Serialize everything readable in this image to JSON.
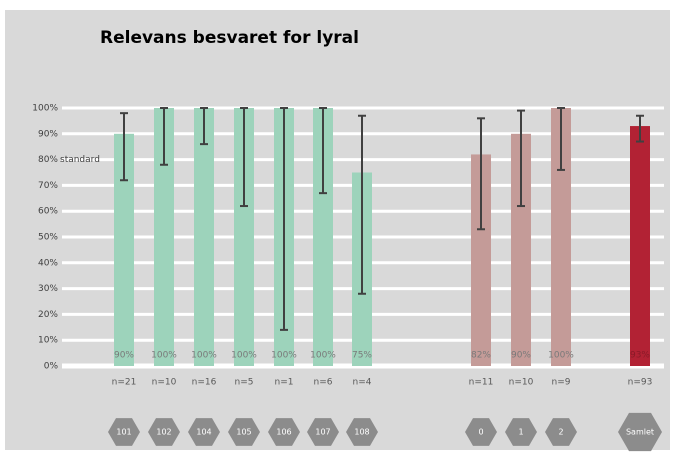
{
  "chart_data": {
    "type": "bar",
    "title": "Relevans besvaret for lyral",
    "annotation": "standard",
    "categories": [
      "101",
      "102",
      "104",
      "105",
      "106",
      "107",
      "108",
      "0",
      "1",
      "2",
      "Samlet"
    ],
    "values": [
      90,
      100,
      100,
      100,
      100,
      100,
      75,
      82,
      90,
      100,
      93
    ],
    "value_labels": [
      "90%",
      "100%",
      "100%",
      "100%",
      "100%",
      "100%",
      "75%",
      "82%",
      "90%",
      "100%",
      "93%"
    ],
    "error_low": [
      72,
      78,
      86,
      62,
      14,
      67,
      28,
      53,
      62,
      76,
      87
    ],
    "error_high": [
      98,
      100,
      100,
      100,
      100,
      100,
      97,
      96,
      99,
      100,
      97
    ],
    "n_labels": [
      "n=21",
      "n=10",
      "n=16",
      "n=5",
      "n=1",
      "n=6",
      "n=4",
      "n=11",
      "n=10",
      "n=9",
      "n=93"
    ],
    "colors": [
      "#9dd3bb",
      "#9dd3bb",
      "#9dd3bb",
      "#9dd3bb",
      "#9dd3bb",
      "#9dd3bb",
      "#9dd3bb",
      "#c49b98",
      "#c49b98",
      "#c49b98",
      "#b22234"
    ],
    "ylim": [
      0,
      100
    ],
    "yticks": [
      {
        "value": 0,
        "label": "0%"
      },
      {
        "value": 10,
        "label": "10%"
      },
      {
        "value": 20,
        "label": "20%"
      },
      {
        "value": 30,
        "label": "30%"
      },
      {
        "value": 40,
        "label": "40%"
      },
      {
        "value": 50,
        "label": "50%"
      },
      {
        "value": 60,
        "label": "60%"
      },
      {
        "value": 70,
        "label": "70%"
      },
      {
        "value": 80,
        "label": "80%"
      },
      {
        "value": 90,
        "label": "90%"
      },
      {
        "value": 100,
        "label": "100%"
      }
    ],
    "grid": true
  }
}
